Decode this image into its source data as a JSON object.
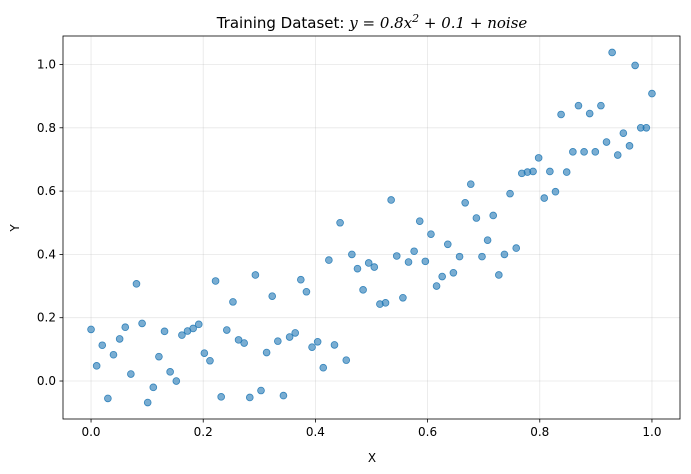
{
  "chart_data": {
    "type": "scatter",
    "title_prefix": "Training Dataset: ",
    "title_formula": "y = 0.8x",
    "title_exponent": "2",
    "title_suffix": " + 0.1 + ",
    "title_noise": "noise",
    "xlabel": "X",
    "ylabel": "Y",
    "xlim": [
      -0.05,
      1.05
    ],
    "ylim": [
      -0.12,
      1.09
    ],
    "xticks": [
      0.0,
      0.2,
      0.4,
      0.6,
      0.8,
      1.0
    ],
    "xtick_labels": [
      "0.0",
      "0.2",
      "0.4",
      "0.6",
      "0.8",
      "1.0"
    ],
    "yticks": [
      0.0,
      0.2,
      0.4,
      0.6,
      0.8,
      1.0
    ],
    "ytick_labels": [
      "0.0",
      "0.2",
      "0.4",
      "0.6",
      "0.8",
      "1.0"
    ],
    "grid": true,
    "point_color": "#1f77b4",
    "point_opacity": 0.6,
    "points": [
      [
        0.0,
        0.163
      ],
      [
        0.01,
        0.048
      ],
      [
        0.02,
        0.113
      ],
      [
        0.03,
        -0.055
      ],
      [
        0.04,
        0.083
      ],
      [
        0.051,
        0.133
      ],
      [
        0.061,
        0.17
      ],
      [
        0.071,
        0.022
      ],
      [
        0.081,
        0.307
      ],
      [
        0.091,
        0.182
      ],
      [
        0.101,
        -0.068
      ],
      [
        0.111,
        -0.02
      ],
      [
        0.121,
        0.077
      ],
      [
        0.131,
        0.157
      ],
      [
        0.141,
        0.029
      ],
      [
        0.152,
        0.0
      ],
      [
        0.162,
        0.145
      ],
      [
        0.172,
        0.158
      ],
      [
        0.182,
        0.166
      ],
      [
        0.192,
        0.179
      ],
      [
        0.202,
        0.088
      ],
      [
        0.212,
        0.064
      ],
      [
        0.222,
        0.316
      ],
      [
        0.232,
        -0.05
      ],
      [
        0.242,
        0.161
      ],
      [
        0.253,
        0.25
      ],
      [
        0.263,
        0.13
      ],
      [
        0.273,
        0.12
      ],
      [
        0.283,
        -0.052
      ],
      [
        0.293,
        0.335
      ],
      [
        0.303,
        -0.03
      ],
      [
        0.313,
        0.09
      ],
      [
        0.323,
        0.268
      ],
      [
        0.333,
        0.126
      ],
      [
        0.343,
        -0.046
      ],
      [
        0.354,
        0.139
      ],
      [
        0.364,
        0.152
      ],
      [
        0.374,
        0.32
      ],
      [
        0.384,
        0.282
      ],
      [
        0.394,
        0.107
      ],
      [
        0.404,
        0.124
      ],
      [
        0.414,
        0.042
      ],
      [
        0.424,
        0.382
      ],
      [
        0.434,
        0.114
      ],
      [
        0.444,
        0.5
      ],
      [
        0.455,
        0.066
      ],
      [
        0.465,
        0.4
      ],
      [
        0.475,
        0.355
      ],
      [
        0.485,
        0.288
      ],
      [
        0.495,
        0.373
      ],
      [
        0.505,
        0.36
      ],
      [
        0.515,
        0.243
      ],
      [
        0.525,
        0.247
      ],
      [
        0.535,
        0.572
      ],
      [
        0.545,
        0.395
      ],
      [
        0.556,
        0.263
      ],
      [
        0.566,
        0.376
      ],
      [
        0.576,
        0.41
      ],
      [
        0.586,
        0.505
      ],
      [
        0.596,
        0.378
      ],
      [
        0.606,
        0.464
      ],
      [
        0.616,
        0.3
      ],
      [
        0.626,
        0.33
      ],
      [
        0.636,
        0.432
      ],
      [
        0.646,
        0.342
      ],
      [
        0.657,
        0.393
      ],
      [
        0.667,
        0.563
      ],
      [
        0.677,
        0.622
      ],
      [
        0.687,
        0.515
      ],
      [
        0.697,
        0.393
      ],
      [
        0.707,
        0.445
      ],
      [
        0.717,
        0.523
      ],
      [
        0.727,
        0.335
      ],
      [
        0.737,
        0.4
      ],
      [
        0.747,
        0.592
      ],
      [
        0.758,
        0.42
      ],
      [
        0.768,
        0.656
      ],
      [
        0.778,
        0.66
      ],
      [
        0.788,
        0.662
      ],
      [
        0.798,
        0.705
      ],
      [
        0.808,
        0.578
      ],
      [
        0.818,
        0.662
      ],
      [
        0.828,
        0.598
      ],
      [
        0.838,
        0.842
      ],
      [
        0.848,
        0.66
      ],
      [
        0.859,
        0.724
      ],
      [
        0.869,
        0.87
      ],
      [
        0.879,
        0.724
      ],
      [
        0.889,
        0.845
      ],
      [
        0.899,
        0.724
      ],
      [
        0.909,
        0.87
      ],
      [
        0.919,
        0.755
      ],
      [
        0.929,
        1.038
      ],
      [
        0.939,
        0.714
      ],
      [
        0.949,
        0.783
      ],
      [
        0.96,
        0.743
      ],
      [
        0.97,
        0.997
      ],
      [
        0.98,
        0.8
      ],
      [
        0.99,
        0.8
      ],
      [
        1.0,
        0.908
      ]
    ]
  }
}
